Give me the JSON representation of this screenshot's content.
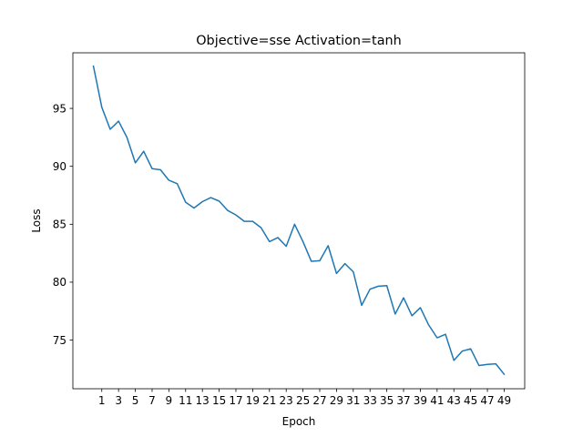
{
  "chart_data": {
    "type": "line",
    "title": "Objective=sse Activation=tanh",
    "xlabel": "Epoch",
    "ylabel": "Loss",
    "xlim": [
      -2.45,
      51.45
    ],
    "ylim": [
      70.8,
      99.8
    ],
    "xticks": [
      1,
      3,
      5,
      7,
      9,
      11,
      13,
      15,
      17,
      19,
      21,
      23,
      25,
      27,
      29,
      31,
      33,
      35,
      37,
      39,
      41,
      43,
      45,
      47,
      49
    ],
    "yticks": [
      75,
      80,
      85,
      90,
      95
    ],
    "grid": false,
    "series": [
      {
        "color": "#1f77b4",
        "x": [
          0,
          1,
          2,
          3,
          4,
          5,
          6,
          7,
          8,
          9,
          10,
          11,
          12,
          13,
          14,
          15,
          16,
          17,
          18,
          19,
          20,
          21,
          22,
          23,
          24,
          25,
          26,
          27,
          28,
          29,
          30,
          31,
          32,
          33,
          34,
          35,
          36,
          37,
          38,
          39,
          40,
          41,
          42,
          43,
          44,
          45,
          46,
          47,
          48,
          49
        ],
        "values": [
          98.65,
          95.1,
          93.2,
          93.9,
          92.5,
          90.3,
          91.3,
          89.8,
          89.7,
          88.8,
          88.5,
          86.9,
          86.4,
          86.95,
          87.3,
          87.0,
          86.2,
          85.8,
          85.25,
          85.25,
          84.7,
          83.5,
          83.85,
          83.1,
          85.0,
          83.5,
          81.8,
          81.85,
          83.15,
          80.75,
          81.6,
          80.9,
          78.0,
          79.4,
          79.65,
          79.7,
          77.25,
          78.65,
          77.1,
          77.8,
          76.3,
          75.2,
          75.5,
          73.25,
          74.05,
          74.25,
          72.8,
          72.9,
          72.95,
          72.05
        ]
      }
    ]
  }
}
